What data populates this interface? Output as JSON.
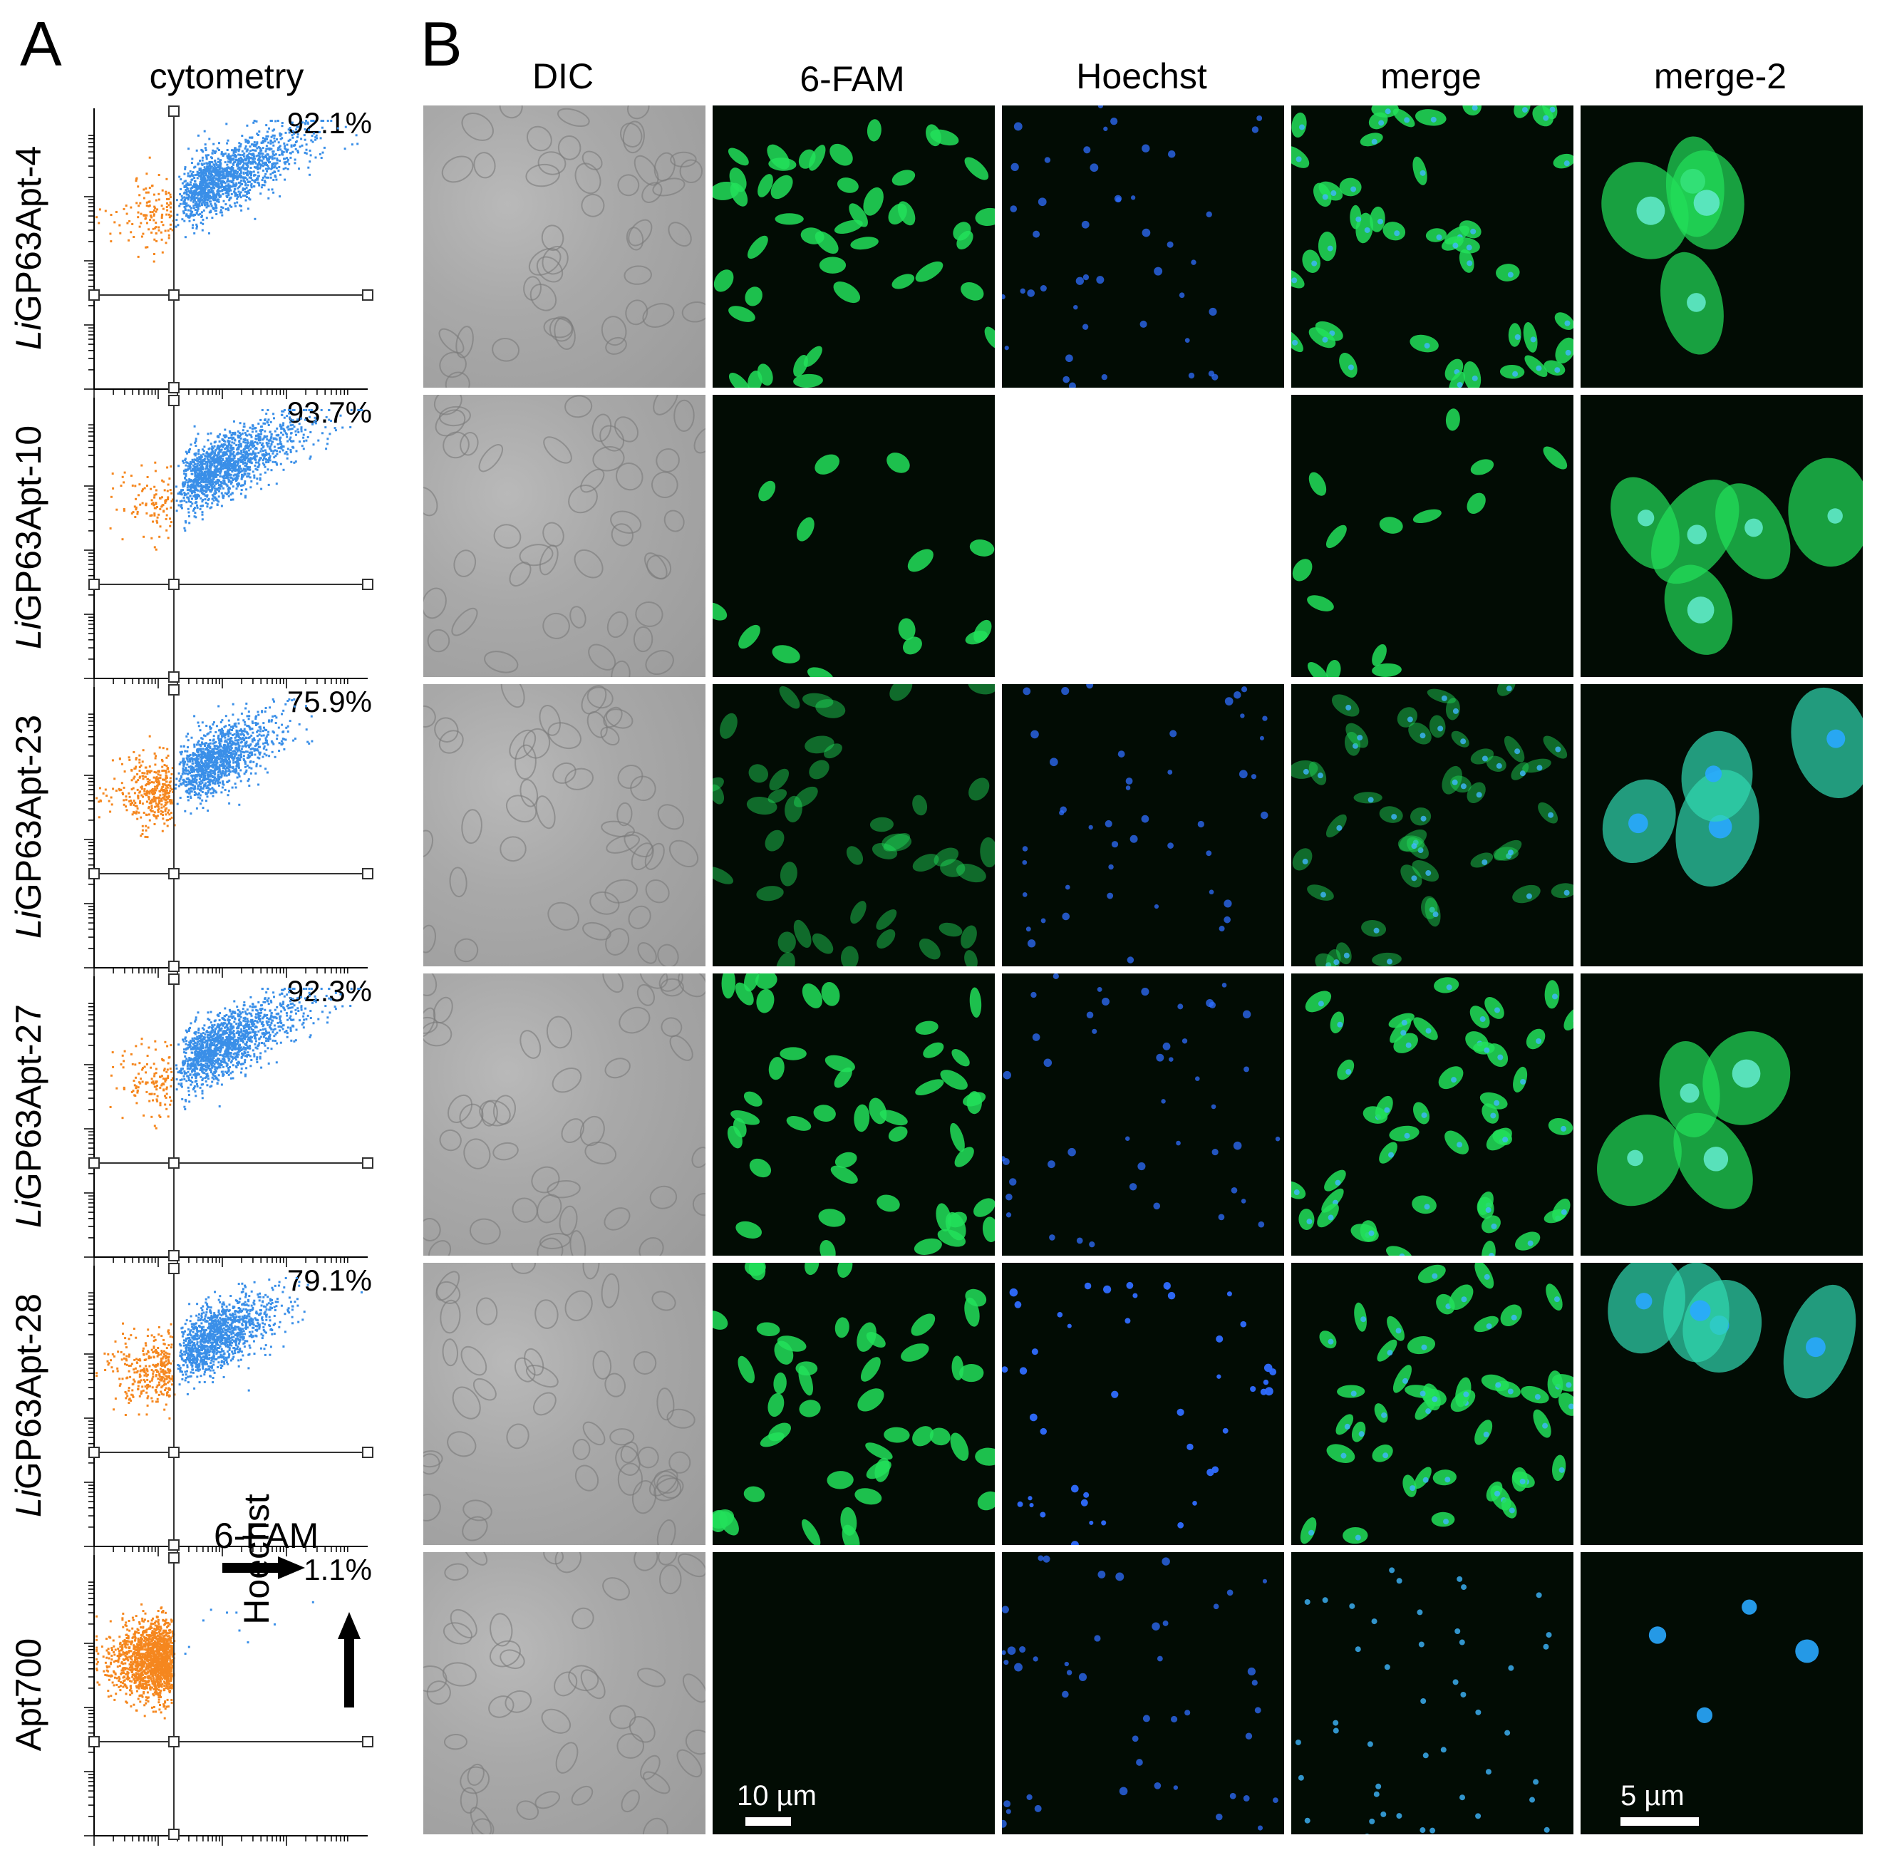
{
  "panel_a_letter": "A",
  "panel_b_letter": "B",
  "cytometry_header": "cytometry",
  "columns": [
    "DIC",
    "6-FAM",
    "Hoechst",
    "merge",
    "merge-2"
  ],
  "rows": [
    {
      "prefix": "Li",
      "name": "GP63Apt-4",
      "percent": "92.1%",
      "positive_fraction": 0.921,
      "fam": "bright",
      "hoechst": "medium",
      "merge2": "green"
    },
    {
      "prefix": "Li",
      "name": "GP63Apt-10",
      "percent": "93.7%",
      "positive_fraction": 0.937,
      "fam": "sparse",
      "hoechst": "dim",
      "merge2": "green"
    },
    {
      "prefix": "Li",
      "name": "GP63Apt-23",
      "percent": "75.9%",
      "positive_fraction": 0.759,
      "fam": "dim",
      "hoechst": "medium",
      "merge2": "cyan"
    },
    {
      "prefix": "Li",
      "name": "GP63Apt-27",
      "percent": "92.3%",
      "positive_fraction": 0.923,
      "fam": "bright",
      "hoechst": "medium",
      "merge2": "green"
    },
    {
      "prefix": "Li",
      "name": "GP63Apt-28",
      "percent": "79.1%",
      "positive_fraction": 0.791,
      "fam": "bright",
      "hoechst": "bright",
      "merge2": "cyan"
    },
    {
      "prefix": "",
      "name": "Apt700",
      "percent": "1.1%",
      "positive_fraction": 0.011,
      "fam": "none",
      "hoechst": "medium",
      "merge2": "blue"
    }
  ],
  "axes": {
    "x_label": "6-FAM",
    "y_label": "Hoechst"
  },
  "scale_bars": {
    "overview": "10 µm",
    "zoom": "5 µm"
  },
  "colors": {
    "negative": "#f5871f",
    "positive": "#3a8fe8",
    "fam": "#22e05a",
    "hoechst": "#2f6dff",
    "background": "#020c04"
  }
}
